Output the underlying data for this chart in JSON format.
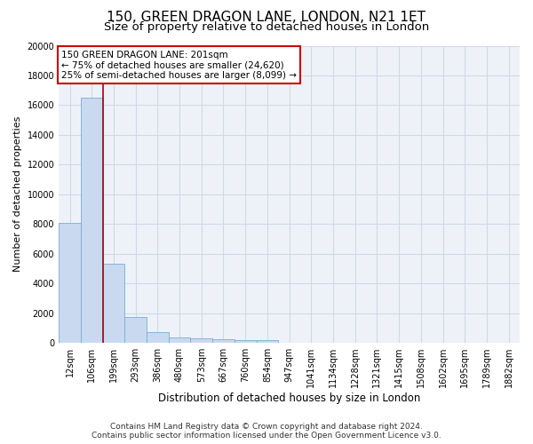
{
  "title1": "150, GREEN DRAGON LANE, LONDON, N21 1ET",
  "title2": "Size of property relative to detached houses in London",
  "xlabel": "Distribution of detached houses by size in London",
  "ylabel": "Number of detached properties",
  "categories": [
    "12sqm",
    "106sqm",
    "199sqm",
    "293sqm",
    "386sqm",
    "480sqm",
    "573sqm",
    "667sqm",
    "760sqm",
    "854sqm",
    "947sqm",
    "1041sqm",
    "1134sqm",
    "1228sqm",
    "1321sqm",
    "1415sqm",
    "1508sqm",
    "1602sqm",
    "1695sqm",
    "1789sqm",
    "1882sqm"
  ],
  "values": [
    8100,
    16500,
    5300,
    1750,
    700,
    380,
    280,
    220,
    200,
    170,
    0,
    0,
    0,
    0,
    0,
    0,
    0,
    0,
    0,
    0,
    0
  ],
  "bar_color": "#c8d9f0",
  "bar_edge_color": "#7aadd4",
  "vline_x_index": 2,
  "vline_color": "#aa0000",
  "annotation_text": "150 GREEN DRAGON LANE: 201sqm\n← 75% of detached houses are smaller (24,620)\n25% of semi-detached houses are larger (8,099) →",
  "annotation_box_color": "#ffffff",
  "annotation_box_edge_color": "#cc0000",
  "ylim": [
    0,
    20000
  ],
  "yticks": [
    0,
    2000,
    4000,
    6000,
    8000,
    10000,
    12000,
    14000,
    16000,
    18000,
    20000
  ],
  "grid_color": "#d0d8e8",
  "bg_color": "#eef2f8",
  "footer": "Contains HM Land Registry data © Crown copyright and database right 2024.\nContains public sector information licensed under the Open Government Licence v3.0.",
  "title1_fontsize": 11,
  "title2_fontsize": 9.5,
  "xlabel_fontsize": 8.5,
  "ylabel_fontsize": 8,
  "tick_fontsize": 7,
  "annot_fontsize": 7.5,
  "footer_fontsize": 6.5
}
